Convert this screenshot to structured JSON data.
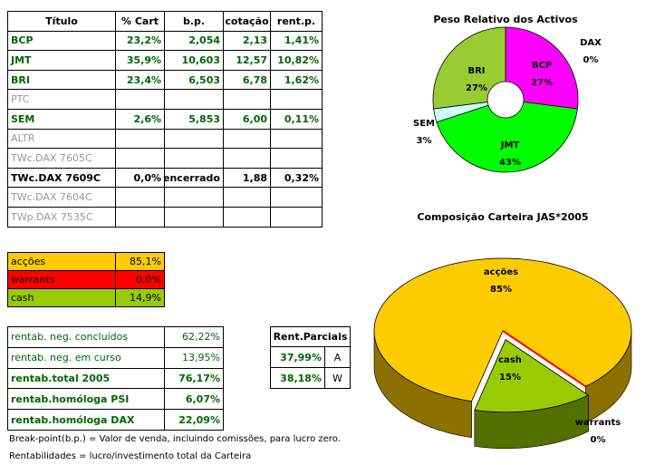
{
  "holdings": {
    "header": [
      "Título",
      "% Cart",
      "b.p.",
      "cotação",
      "rent.p."
    ],
    "rows": [
      [
        "BCP",
        "23,2%",
        "2,054",
        "2,13",
        "1,41%"
      ],
      [
        "JMT",
        "35,9%",
        "10,603",
        "12,57",
        "10,82%"
      ],
      [
        "BRI",
        "23,4%",
        "6,503",
        "6,78",
        "1,62%"
      ],
      [
        "PTC"
      ],
      [
        "SEM",
        "2,6%",
        "5,853",
        "6,00",
        "0,11%"
      ],
      [
        "ALTR"
      ],
      [
        "TWc.DAX 7605C"
      ],
      [
        "TWc.DAX 7609C",
        "0,0%",
        "encerrado",
        "1,88",
        "0,32%"
      ],
      [
        "TWc.DAX 7604C"
      ],
      [
        "TWp.DAX 7535C"
      ]
    ]
  },
  "allocation": [
    [
      "acções",
      "85,1%"
    ],
    [
      "warrants",
      "0,0%"
    ],
    [
      "cash",
      "14,9%"
    ]
  ],
  "returns": [
    [
      "rentab. neg. concluídos",
      "62,22%"
    ],
    [
      "rentab. neg. em curso",
      "13,95%"
    ],
    [
      "rentab.total 2005",
      "76,17%"
    ],
    [
      "rentab.homóloga PSI",
      "6,07%"
    ],
    [
      "rentab.homóloga DAX",
      "22,09%"
    ]
  ],
  "partial_returns": {
    "title": "Rent.Parciais",
    "rows": [
      [
        "37,99%",
        "A"
      ],
      [
        "38,18%",
        "W"
      ]
    ]
  },
  "notes": [
    "Break-point(b.p.) = Valor de venda, incluindo comissões, para lucro zero.",
    "Rentabilidades = lucro/investimento total da Carteira"
  ],
  "chart_data": [
    {
      "type": "pie",
      "title": "Peso Relativo dos Activos",
      "categories": [
        "DAX",
        "BCP",
        "JMT",
        "SEM",
        "BRI"
      ],
      "values": [
        0,
        27,
        43,
        3,
        27
      ],
      "value_labels": [
        "0%",
        "27%",
        "43%",
        "3%",
        "27%"
      ],
      "colors": [
        "#0000ff",
        "#ff00ff",
        "#00ff00",
        "#ccffff",
        "#99cc33"
      ],
      "donut": true
    },
    {
      "type": "pie",
      "title": "Composição Carteira JAS*2005",
      "categories": [
        "acções",
        "warrants",
        "cash"
      ],
      "values": [
        85,
        0,
        15
      ],
      "value_labels": [
        "85%",
        "0%",
        "15%"
      ],
      "colors": [
        "#ffcc00",
        "#ff0000",
        "#99cc00"
      ],
      "three_d": true,
      "exploded": "cash"
    }
  ]
}
